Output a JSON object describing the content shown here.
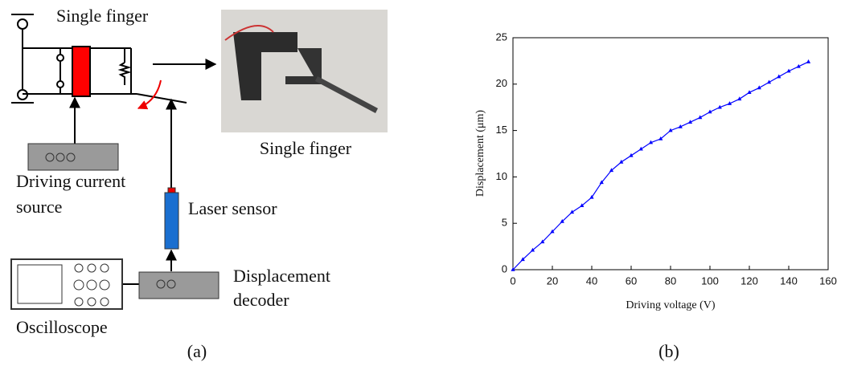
{
  "diagram": {
    "top_label": "Single finger",
    "photo_caption": "Single finger",
    "source_label": [
      "Driving current",
      "source"
    ],
    "sensor_label": "Laser sensor",
    "decoder_label": [
      "Displacement",
      "decoder"
    ],
    "scope_label": "Oscilloscope",
    "caption": "(a)"
  },
  "chart_data": {
    "type": "line",
    "caption": "(b)",
    "x_label": "Driving voltage (V)",
    "y_label": "Displacement (μm)",
    "x": [
      0,
      5,
      10,
      15,
      20,
      25,
      30,
      35,
      40,
      45,
      50,
      55,
      60,
      65,
      70,
      75,
      80,
      85,
      90,
      95,
      100,
      105,
      110,
      115,
      120,
      125,
      130,
      135,
      140,
      145,
      150
    ],
    "series": [
      {
        "color": "#0000ff",
        "values": [
          0,
          1.1,
          2.1,
          3.0,
          4.1,
          5.2,
          6.2,
          6.9,
          7.8,
          9.4,
          10.7,
          11.6,
          12.3,
          13.0,
          13.7,
          14.1,
          15.0,
          15.4,
          15.9,
          16.4,
          17.0,
          17.5,
          17.9,
          18.4,
          19.1,
          19.6,
          20.2,
          20.8,
          21.4,
          21.9,
          22.4
        ]
      }
    ],
    "xlim": [
      0,
      160
    ],
    "xticks": [
      0,
      20,
      40,
      60,
      80,
      100,
      120,
      140,
      160
    ],
    "ylim": [
      0,
      25
    ],
    "yticks": [
      0,
      5,
      10,
      15,
      20,
      25
    ]
  }
}
